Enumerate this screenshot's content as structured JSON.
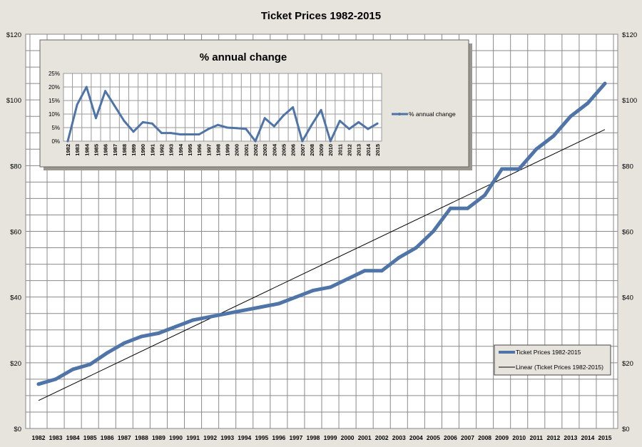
{
  "chart_data": [
    {
      "type": "line",
      "title": "Ticket Prices 1982-2015",
      "xlabel": "",
      "ylabel": "",
      "categories": [
        "1982",
        "1983",
        "1984",
        "1985",
        "1986",
        "1987",
        "1988",
        "1989",
        "1990",
        "1991",
        "1992",
        "1993",
        "1994",
        "1995",
        "1996",
        "1997",
        "1998",
        "1999",
        "2000",
        "2001",
        "2002",
        "2003",
        "2004",
        "2005",
        "2006",
        "2007",
        "2008",
        "2009",
        "2010",
        "2011",
        "2012",
        "2013",
        "2014",
        "2015"
      ],
      "ylim": [
        0,
        120
      ],
      "yticks": [
        0,
        20,
        40,
        60,
        80,
        100,
        120
      ],
      "ytick_labels": [
        "$0",
        "$20",
        "$40",
        "$60",
        "$80",
        "$100",
        "$120"
      ],
      "series": [
        {
          "name": "Ticket Prices 1982-2015",
          "color": "#4e74a8",
          "values": [
            13.5,
            15,
            18,
            19.5,
            23,
            26,
            28,
            29,
            31,
            33,
            34,
            35,
            36,
            37,
            38,
            40,
            42,
            43,
            45.5,
            48,
            48,
            52,
            55,
            60,
            67,
            67,
            71,
            79,
            79,
            85,
            89,
            95,
            99,
            105
          ]
        }
      ],
      "trendline": {
        "name": "Linear (Ticket Prices 1982-2015)",
        "color": "#000000",
        "start": 8.5,
        "end": 91
      },
      "legend": "bottom-right",
      "grid": true
    },
    {
      "type": "line",
      "title": "% annual change",
      "categories": [
        "1982",
        "1983",
        "1984",
        "1985",
        "1986",
        "1987",
        "1988",
        "1989",
        "1990",
        "1991",
        "1992",
        "1993",
        "1994",
        "1995",
        "1996",
        "1997",
        "1998",
        "1999",
        "2000",
        "2001",
        "2002",
        "2003",
        "2004",
        "2005",
        "2006",
        "2007",
        "2008",
        "2009",
        "2010",
        "2011",
        "2012",
        "2013",
        "2014",
        "2015"
      ],
      "ylim": [
        0,
        25
      ],
      "yticks": [
        0,
        5,
        10,
        15,
        20,
        25
      ],
      "ytick_labels": [
        "0%",
        "5%",
        "10%",
        "15%",
        "20%",
        "25%"
      ],
      "series": [
        {
          "name": "% annual change",
          "color": "#4e74a8",
          "values": [
            0,
            13.5,
            20,
            8.5,
            18.5,
            13,
            7.5,
            3.5,
            7,
            6.5,
            3,
            3,
            2.5,
            2.5,
            2.5,
            4.5,
            6,
            5,
            4.8,
            4.5,
            0,
            8.5,
            5.5,
            9.5,
            12.5,
            0,
            6,
            11.5,
            0,
            7.5,
            4.5,
            7,
            4.5,
            6.5
          ]
        }
      ],
      "legend": "right",
      "grid": true
    }
  ]
}
